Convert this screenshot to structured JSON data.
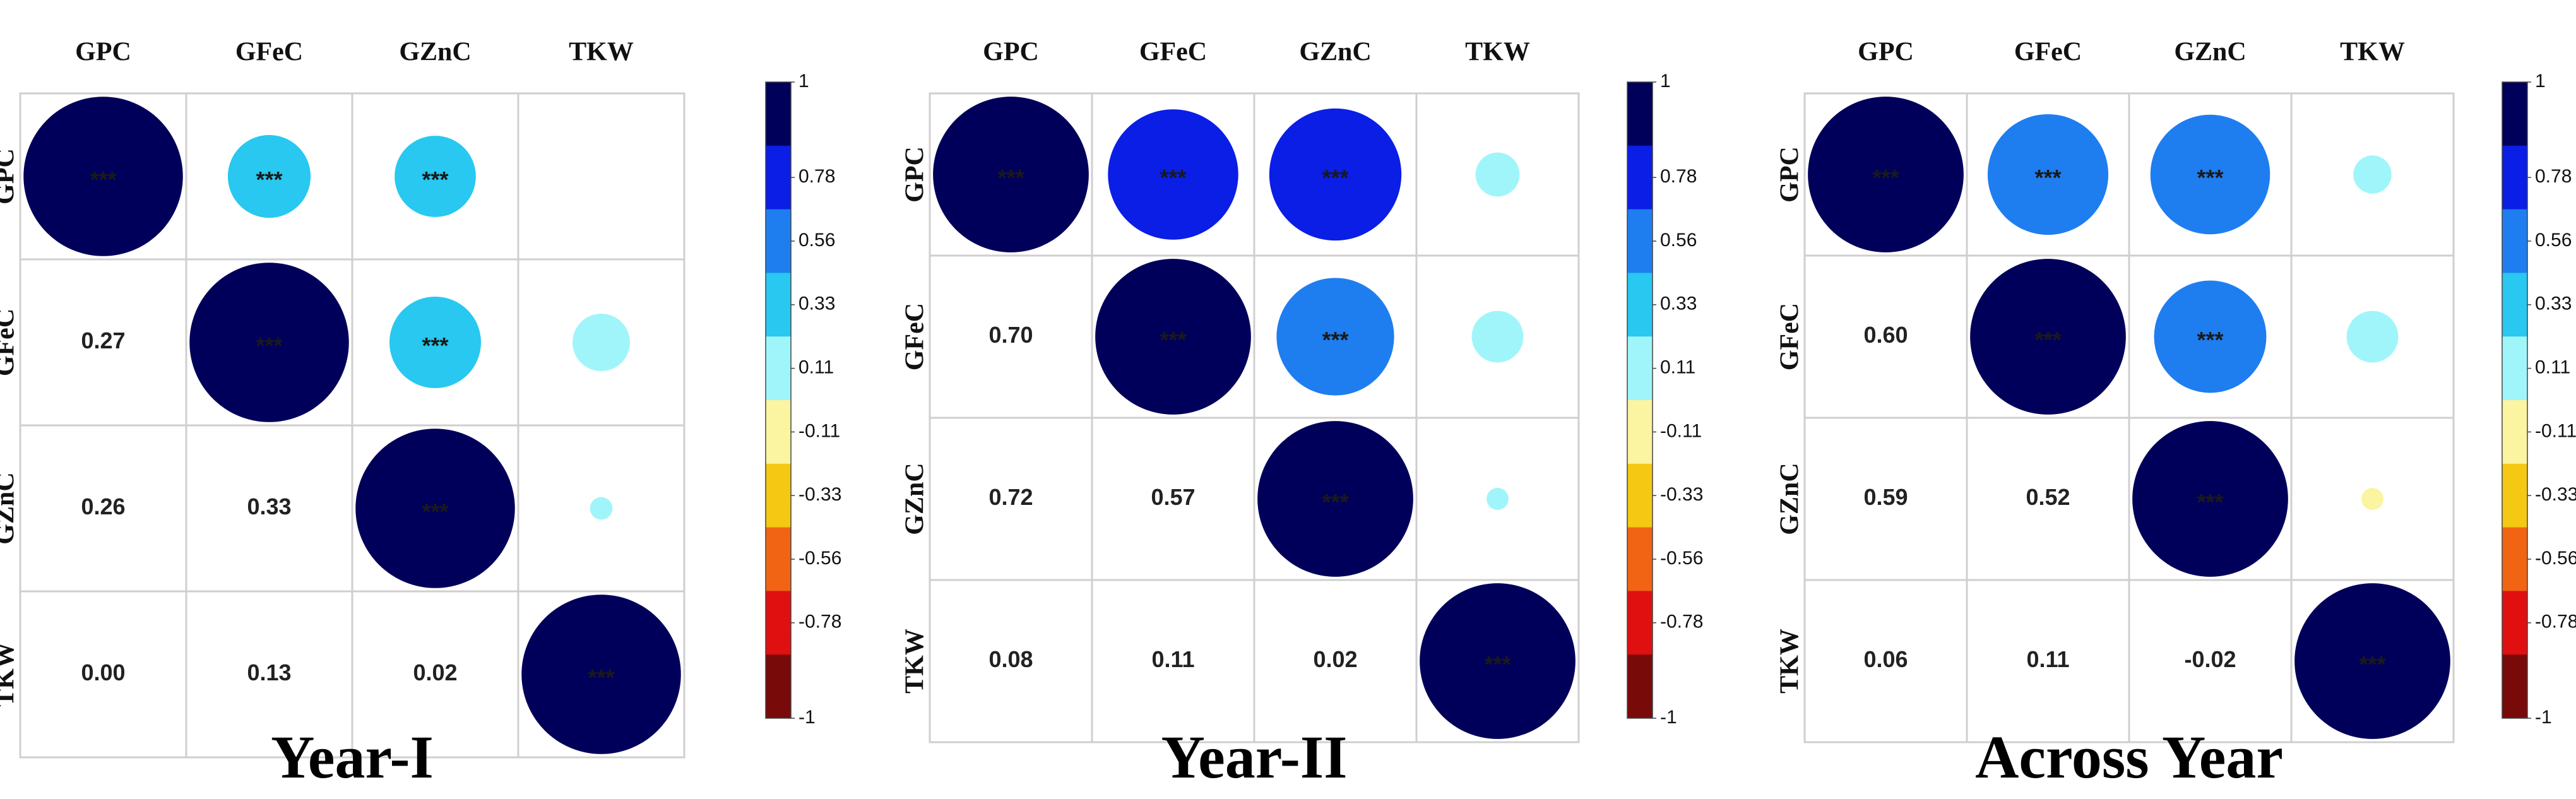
{
  "chart_data": {
    "type": "heatmap",
    "subtype": "correlation-matrix",
    "variables": [
      "GPC",
      "GFeC",
      "GZnC",
      "TKW"
    ],
    "significance_marker": "***",
    "colorbar": {
      "ticks": [
        "1",
        "0.78",
        "0.56",
        "0.33",
        "0.11",
        "-0.11",
        "-0.33",
        "-0.56",
        "-0.78",
        "-1"
      ],
      "colors": [
        "#00005a",
        "#0a1ee6",
        "#1e7ef0",
        "#28c8f0",
        "#a0f5fa",
        "#fbf4a0",
        "#f5c814",
        "#f06414",
        "#e01010",
        "#780a0a"
      ]
    },
    "panels": [
      {
        "title": "Year-I",
        "lower_values": [
          [
            "0.27"
          ],
          [
            "0.26",
            "0.33"
          ],
          [
            "0.00",
            "0.13",
            "0.02"
          ]
        ],
        "upper_circles": [
          {
            "row": 0,
            "col": 0,
            "r": 1.0,
            "sig": true
          },
          {
            "row": 0,
            "col": 1,
            "r": 0.27,
            "sig": true
          },
          {
            "row": 0,
            "col": 2,
            "r": 0.26,
            "sig": true
          },
          {
            "row": 0,
            "col": 3,
            "r": 0.0,
            "sig": false
          },
          {
            "row": 1,
            "col": 1,
            "r": 1.0,
            "sig": true
          },
          {
            "row": 1,
            "col": 2,
            "r": 0.33,
            "sig": true
          },
          {
            "row": 1,
            "col": 3,
            "r": 0.13,
            "sig": false
          },
          {
            "row": 2,
            "col": 2,
            "r": 1.0,
            "sig": true
          },
          {
            "row": 2,
            "col": 3,
            "r": 0.02,
            "sig": false
          },
          {
            "row": 3,
            "col": 3,
            "r": 1.0,
            "sig": true
          }
        ]
      },
      {
        "title": "Year-II",
        "lower_values": [
          [
            "0.70"
          ],
          [
            "0.72",
            "0.57"
          ],
          [
            "0.08",
            "0.11",
            "0.02"
          ]
        ],
        "upper_circles": [
          {
            "row": 0,
            "col": 0,
            "r": 1.0,
            "sig": true
          },
          {
            "row": 0,
            "col": 1,
            "r": 0.7,
            "sig": true
          },
          {
            "row": 0,
            "col": 2,
            "r": 0.72,
            "sig": true
          },
          {
            "row": 0,
            "col": 3,
            "r": 0.08,
            "sig": false
          },
          {
            "row": 1,
            "col": 1,
            "r": 1.0,
            "sig": true
          },
          {
            "row": 1,
            "col": 2,
            "r": 0.57,
            "sig": true
          },
          {
            "row": 1,
            "col": 3,
            "r": 0.11,
            "sig": false
          },
          {
            "row": 2,
            "col": 2,
            "r": 1.0,
            "sig": true
          },
          {
            "row": 2,
            "col": 3,
            "r": 0.02,
            "sig": false
          },
          {
            "row": 3,
            "col": 3,
            "r": 1.0,
            "sig": true
          }
        ]
      },
      {
        "title": "Across Year",
        "lower_values": [
          [
            "0.60"
          ],
          [
            "0.59",
            "0.52"
          ],
          [
            "0.06",
            "0.11",
            "-0.02"
          ]
        ],
        "upper_circles": [
          {
            "row": 0,
            "col": 0,
            "r": 1.0,
            "sig": true
          },
          {
            "row": 0,
            "col": 1,
            "r": 0.6,
            "sig": true
          },
          {
            "row": 0,
            "col": 2,
            "r": 0.59,
            "sig": true
          },
          {
            "row": 0,
            "col": 3,
            "r": 0.06,
            "sig": false
          },
          {
            "row": 1,
            "col": 1,
            "r": 1.0,
            "sig": true
          },
          {
            "row": 1,
            "col": 2,
            "r": 0.52,
            "sig": true
          },
          {
            "row": 1,
            "col": 3,
            "r": 0.11,
            "sig": false
          },
          {
            "row": 2,
            "col": 2,
            "r": 1.0,
            "sig": true
          },
          {
            "row": 2,
            "col": 3,
            "r": -0.02,
            "sig": false
          },
          {
            "row": 3,
            "col": 3,
            "r": 1.0,
            "sig": true
          }
        ]
      }
    ]
  }
}
